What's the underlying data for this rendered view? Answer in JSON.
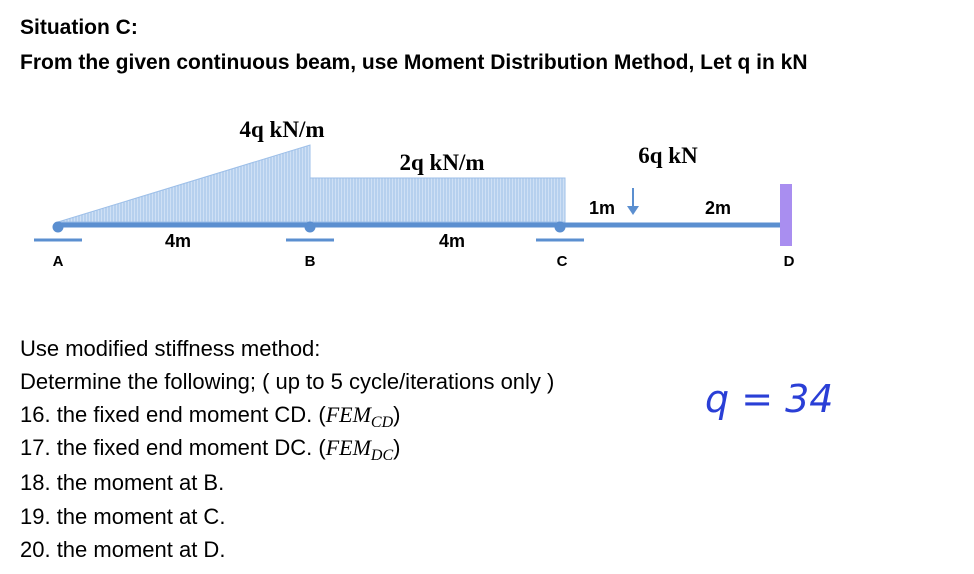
{
  "header": {
    "title": "Situation C:",
    "instruction": "From the given continuous beam, use Moment Distribution Method, Let q in kN"
  },
  "beam": {
    "loads": {
      "triangular": "4q kN/m",
      "uniform": "2q kN/m",
      "point": "6q kN"
    },
    "dimensions": [
      "4m",
      "4m",
      "1m",
      "2m"
    ],
    "supports": [
      "A",
      "B",
      "C",
      "D"
    ]
  },
  "questions": {
    "method": "Use modified stiffness method:",
    "directive": "Determine the following; ( up to 5 cycle/iterations only )",
    "items": [
      {
        "text": "16. the fixed end moment CD. (",
        "symbol": "FEM",
        "sub": "CD",
        "close": ")"
      },
      {
        "text": "17. the fixed end moment DC. (",
        "symbol": "FEM",
        "sub": "DC",
        "close": ")"
      },
      {
        "text": "18. the moment at B."
      },
      {
        "text": "19. the moment at C."
      },
      {
        "text": "20. the moment at D."
      }
    ]
  },
  "note": {
    "handwritten": "q = 34"
  }
}
